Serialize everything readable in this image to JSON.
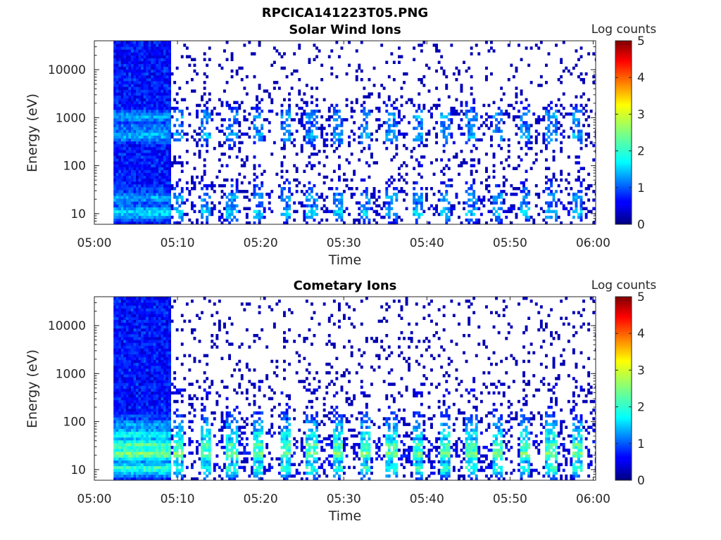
{
  "figure": {
    "title": "RPCICA141223T05.PNG"
  },
  "chart_data": [
    {
      "type": "heatmap",
      "title": "Solar Wind Ions",
      "xlabel": "Time",
      "ylabel": "Energy (eV)",
      "x_ticks": [
        "05:00",
        "05:10",
        "05:20",
        "05:30",
        "05:40",
        "05:50",
        "06:00"
      ],
      "xlim_minutes": [
        0,
        60.3
      ],
      "y_scale": "log",
      "y_ticks": [
        10,
        100,
        1000,
        10000
      ],
      "y_tick_labels": [
        "10",
        "100",
        "1000",
        "10000"
      ],
      "ylim": [
        6,
        40000
      ],
      "colorbar": {
        "label": "Log counts",
        "ticks": [
          "0",
          "1",
          "2",
          "3",
          "4",
          "5"
        ],
        "range": [
          0,
          5
        ],
        "colormap": "jet"
      },
      "data_start_minute": 2.3,
      "dense_until_minute": 9.2,
      "energy_bands": [
        {
          "energy": 10,
          "level": 1.8
        },
        {
          "energy": 20,
          "level": 1.5
        },
        {
          "energy": 30,
          "level": 1.0
        },
        {
          "energy": 100,
          "level": 0.4
        },
        {
          "energy": 400,
          "level": 1.6
        },
        {
          "energy": 600,
          "level": 1.3
        },
        {
          "energy": 1000,
          "level": 1.5
        },
        {
          "energy": 1200,
          "level": 0.8
        }
      ]
    },
    {
      "type": "heatmap",
      "title": "Cometary Ions",
      "xlabel": "Time",
      "ylabel": "Energy (eV)",
      "x_ticks": [
        "05:00",
        "05:10",
        "05:20",
        "05:30",
        "05:40",
        "05:50",
        "06:00"
      ],
      "xlim_minutes": [
        0,
        60.3
      ],
      "y_scale": "log",
      "y_ticks": [
        10,
        100,
        1000,
        10000
      ],
      "y_tick_labels": [
        "10",
        "100",
        "1000",
        "10000"
      ],
      "ylim": [
        6,
        40000
      ],
      "colorbar": {
        "label": "Log counts",
        "ticks": [
          "0",
          "1",
          "2",
          "3",
          "4",
          "5"
        ],
        "range": [
          0,
          5
        ],
        "colormap": "jet"
      },
      "data_start_minute": 2.3,
      "dense_until_minute": 9.2,
      "energy_bands": [
        {
          "energy": 10,
          "level": 2.2
        },
        {
          "energy": 20,
          "level": 2.6
        },
        {
          "energy": 30,
          "level": 2.4
        },
        {
          "energy": 50,
          "level": 2.0
        },
        {
          "energy": 80,
          "level": 1.5
        },
        {
          "energy": 120,
          "level": 1.0
        },
        {
          "energy": 400,
          "level": 0.5
        }
      ]
    }
  ]
}
